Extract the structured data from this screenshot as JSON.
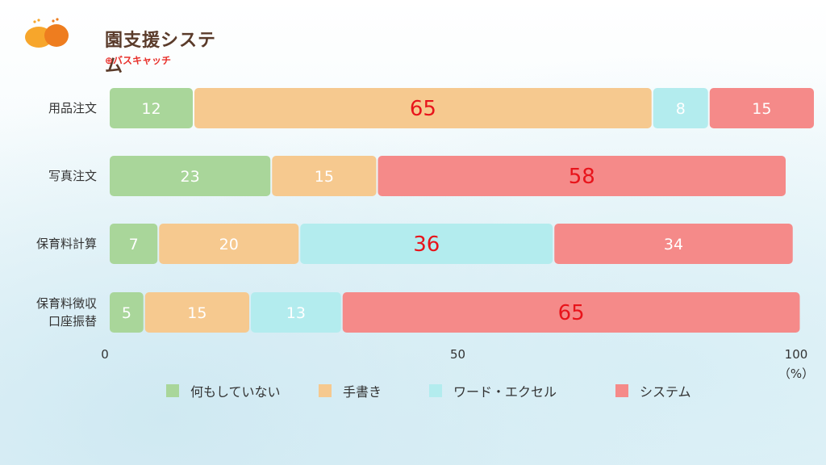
{
  "logo": {
    "title": "園支援システム",
    "subtitle": "⊕バスキャッチ"
  },
  "colors": {
    "nothing": "#a9d69a",
    "handwritten": "#f6c98f",
    "excel": "#b3ecee",
    "system": "#f58a89",
    "highlight_text": "#e8141b",
    "label_text": "#ffffff",
    "axis_text": "#333333"
  },
  "chart_data": {
    "type": "bar",
    "orientation": "horizontal",
    "stacked": true,
    "categories": [
      "用品注文",
      "写真注文",
      "保育料計算",
      "保育料徴収\n口座振替"
    ],
    "series": [
      {
        "name": "何もしていない",
        "values": [
          12,
          23,
          7,
          5
        ]
      },
      {
        "name": "手書き",
        "values": [
          65,
          15,
          20,
          15
        ]
      },
      {
        "name": "ワード・エクセル",
        "values": [
          8,
          0,
          36,
          13
        ]
      },
      {
        "name": "システム",
        "values": [
          15,
          58,
          34,
          65
        ]
      }
    ],
    "highlighted": [
      [
        0,
        1
      ],
      [
        1,
        3
      ],
      [
        2,
        2
      ],
      [
        3,
        3
      ]
    ],
    "xlim": [
      0,
      100
    ],
    "xticks": [
      "0",
      "50",
      "100"
    ],
    "xunit": "（%）",
    "legend_position": "bottom",
    "grid": false
  }
}
